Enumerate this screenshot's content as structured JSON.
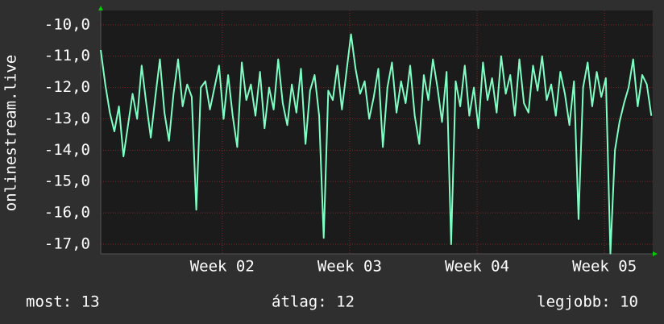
{
  "chart_data": {
    "type": "line",
    "y_label": "onlinestream.live",
    "color": "#7fffc4",
    "values": [
      -10.8,
      -11.9,
      -12.8,
      -13.4,
      -12.6,
      -14.2,
      -13.2,
      -12.2,
      -13.0,
      -11.3,
      -12.5,
      -13.6,
      -12.3,
      -11.1,
      -12.8,
      -13.7,
      -12.2,
      -11.1,
      -12.6,
      -11.9,
      -12.3,
      -15.9,
      -12.0,
      -11.8,
      -12.7,
      -12.0,
      -11.3,
      -13.0,
      -11.6,
      -12.9,
      -13.9,
      -11.2,
      -12.4,
      -11.9,
      -12.9,
      -11.5,
      -13.3,
      -12.0,
      -12.7,
      -11.1,
      -12.5,
      -13.2,
      -11.9,
      -12.8,
      -11.4,
      -13.8,
      -12.1,
      -11.6,
      -12.9,
      -16.8,
      -12.1,
      -12.4,
      -11.3,
      -12.7,
      -11.5,
      -10.3,
      -11.4,
      -12.2,
      -11.8,
      -13.0,
      -12.3,
      -11.4,
      -13.9,
      -12.0,
      -11.2,
      -12.8,
      -11.8,
      -12.5,
      -11.3,
      -12.9,
      -13.8,
      -11.6,
      -12.4,
      -11.1,
      -12.0,
      -13.1,
      -11.5,
      -17.0,
      -11.8,
      -12.6,
      -11.3,
      -12.9,
      -12.0,
      -13.3,
      -11.2,
      -12.4,
      -11.7,
      -12.8,
      -11.0,
      -12.2,
      -11.6,
      -12.9,
      -11.1,
      -12.5,
      -12.8,
      -11.3,
      -12.1,
      -11.0,
      -12.4,
      -11.9,
      -12.9,
      -11.5,
      -12.2,
      -13.2,
      -11.8,
      -16.2,
      -12.0,
      -11.2,
      -12.6,
      -11.5,
      -12.3,
      -11.7,
      -17.3,
      -14.0,
      -13.1,
      -12.5,
      -12.0,
      -11.1,
      -12.6,
      -11.6,
      -11.9,
      -12.9
    ],
    "xlim": [
      0,
      121.3
    ],
    "xticks": [
      {
        "value": 26.7,
        "label": "Week 02"
      },
      {
        "value": 54.7,
        "label": "Week 03"
      },
      {
        "value": 82.7,
        "label": "Week 04"
      },
      {
        "value": 110.7,
        "label": "Week 05"
      }
    ],
    "ylim": [
      -17.31,
      -9.54
    ],
    "yticks": [
      {
        "value": -10,
        "label": "-10,0"
      },
      {
        "value": -11,
        "label": "-11,0"
      },
      {
        "value": -12,
        "label": "-12,0"
      },
      {
        "value": -13,
        "label": "-13,0"
      },
      {
        "value": -14,
        "label": "-14,0"
      },
      {
        "value": -15,
        "label": "-15,0"
      },
      {
        "value": -16,
        "label": "-16,0"
      },
      {
        "value": -17,
        "label": "-17,0"
      }
    ],
    "grid": true,
    "footer": {
      "current": "most: 13",
      "average": "átlag: 12",
      "best": "legjobb: 10"
    }
  }
}
